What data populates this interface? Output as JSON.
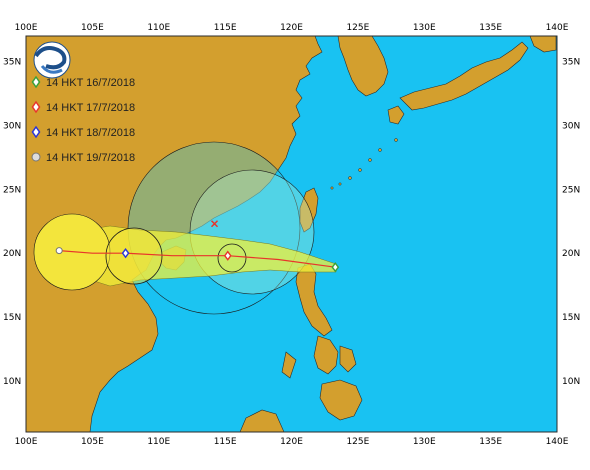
{
  "map": {
    "lon_range": [
      100,
      140
    ],
    "lat_range": [
      6,
      37
    ],
    "lon_ticks": [
      "100E",
      "105E",
      "110E",
      "115E",
      "120E",
      "125E",
      "130E",
      "135E",
      "140E"
    ],
    "lat_ticks": [
      "35N",
      "30N",
      "25N",
      "20N",
      "15N",
      "10N"
    ],
    "colors": {
      "ocean": "#19c2f2",
      "land": "#d39f2e",
      "border": "#333333",
      "track": "#e8352b",
      "forecast_cone": "#f2f23a",
      "gale_radius": "#f3e53c",
      "storm_radius_fill": "#b8efc8"
    }
  },
  "logo": {
    "icon": "observatory-logo-icon"
  },
  "legend": [
    {
      "label": "14 HKT 16/7/2018",
      "icon": "green-diamond-icon",
      "color": "#3aa03a"
    },
    {
      "label": "14 HKT 17/7/2018",
      "icon": "red-diamond-icon",
      "color": "#e8352b"
    },
    {
      "label": "14 HKT 18/7/2018",
      "icon": "blue-diamond-icon",
      "color": "#2b35d6"
    },
    {
      "label": "14 HKT 19/7/2018",
      "icon": "grey-storm-icon",
      "color": "#888888"
    }
  ],
  "track": [
    {
      "lon": 123.3,
      "lat": 18.9,
      "marker": "green"
    },
    {
      "lon": 119.0,
      "lat": 19.5
    },
    {
      "lon": 115.2,
      "lat": 19.8,
      "marker": "red"
    },
    {
      "lon": 111.0,
      "lat": 19.8
    },
    {
      "lon": 107.5,
      "lat": 20.0,
      "marker": "blue"
    },
    {
      "lon": 105.0,
      "lat": 20.0
    },
    {
      "lon": 102.5,
      "lat": 20.2,
      "marker": "grey"
    }
  ],
  "hong_kong_marker": {
    "lon": 114.2,
    "lat": 22.3
  }
}
